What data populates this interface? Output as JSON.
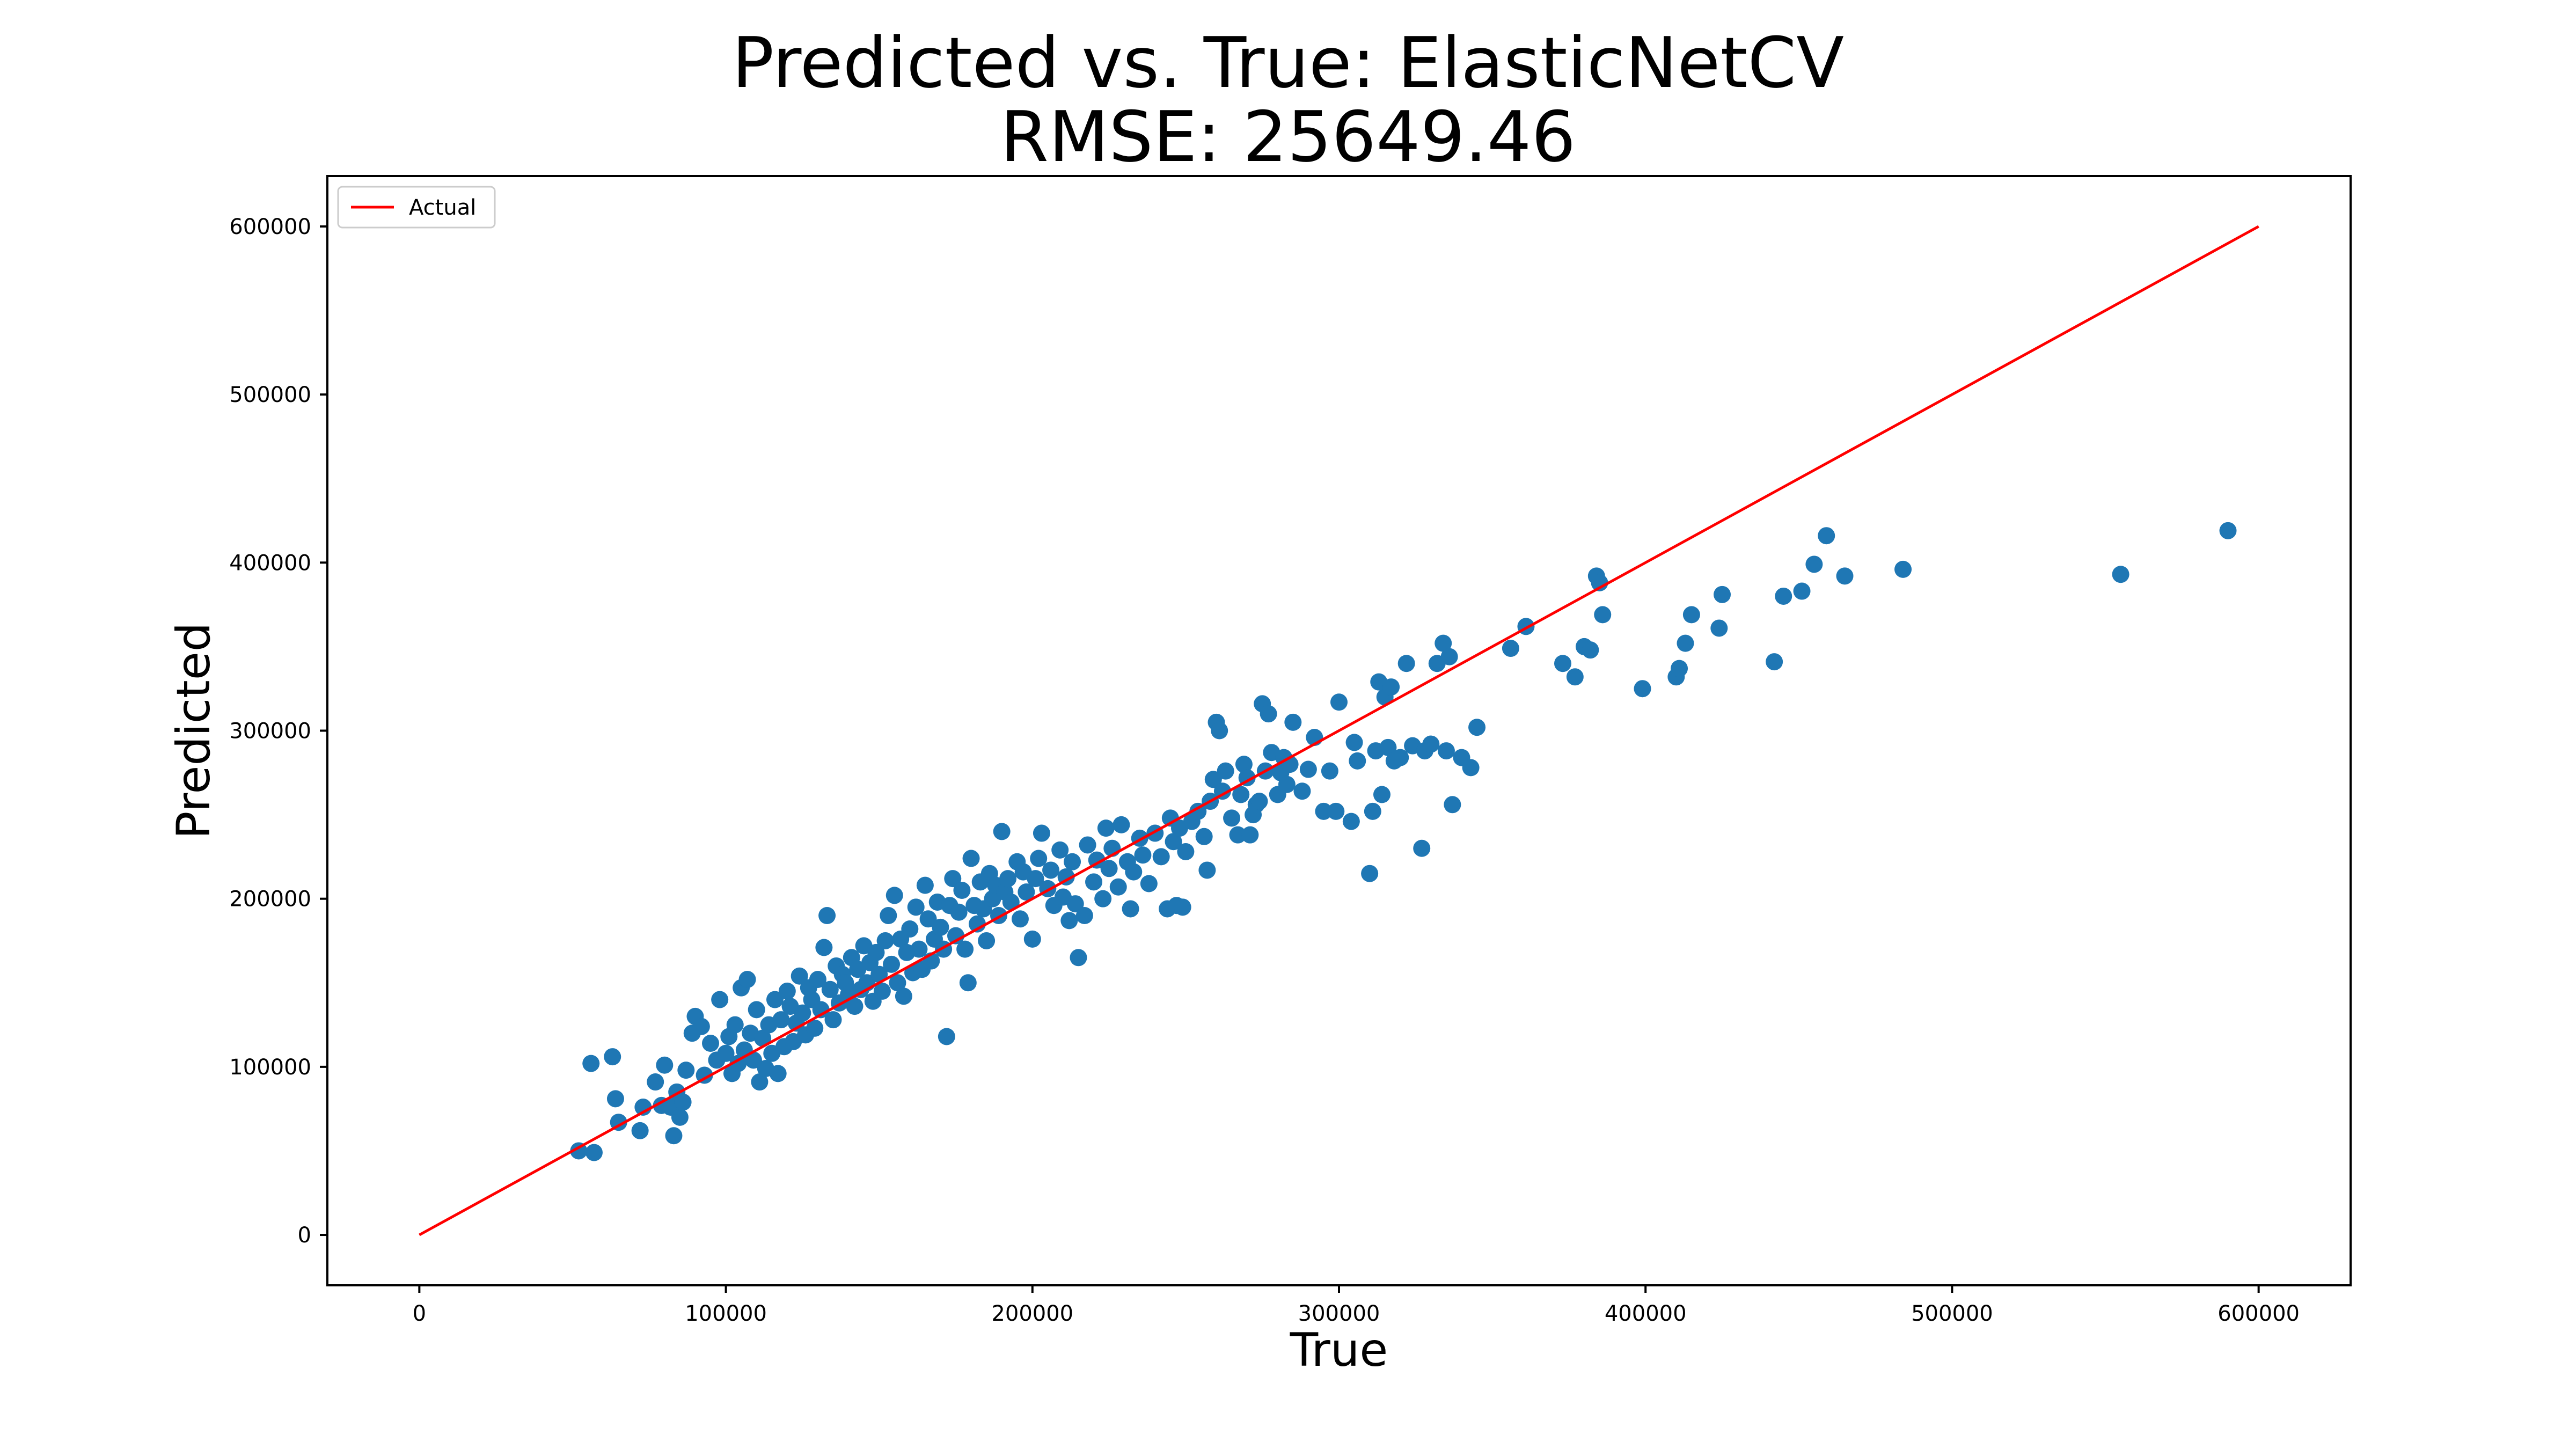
{
  "chart_data": {
    "type": "scatter",
    "title": "Predicted vs. True: ElasticNetCV",
    "subtitle": "RMSE: 25649.46",
    "xlabel": "True",
    "ylabel": "Predicted",
    "xlim": [
      -30000,
      630000
    ],
    "ylim": [
      -30000,
      630000
    ],
    "xticks": [
      0,
      100000,
      200000,
      300000,
      400000,
      500000,
      600000
    ],
    "yticks": [
      0,
      100000,
      200000,
      300000,
      400000,
      500000,
      600000
    ],
    "grid": false,
    "legend": {
      "position": "top-left",
      "entries": [
        {
          "label": "Actual",
          "color": "#e41a1c",
          "kind": "line"
        }
      ]
    },
    "reference_line": {
      "name": "Actual",
      "x": [
        0,
        600000
      ],
      "y": [
        0,
        600000
      ],
      "color": "#ff0000"
    },
    "points_color": "#1f77b4",
    "points": [
      [
        52000,
        50000
      ],
      [
        57000,
        49000
      ],
      [
        56000,
        102000
      ],
      [
        63000,
        106000
      ],
      [
        64000,
        81000
      ],
      [
        65000,
        67000
      ],
      [
        72000,
        62000
      ],
      [
        73000,
        76000
      ],
      [
        77000,
        91000
      ],
      [
        79000,
        77000
      ],
      [
        80000,
        101000
      ],
      [
        82000,
        76000
      ],
      [
        83000,
        59000
      ],
      [
        84000,
        85000
      ],
      [
        85000,
        70000
      ],
      [
        86000,
        79000
      ],
      [
        87000,
        98000
      ],
      [
        89000,
        120000
      ],
      [
        90000,
        130000
      ],
      [
        92000,
        124000
      ],
      [
        93000,
        95000
      ],
      [
        95000,
        114000
      ],
      [
        97000,
        104000
      ],
      [
        98000,
        140000
      ],
      [
        100000,
        108000
      ],
      [
        101000,
        118000
      ],
      [
        102000,
        96000
      ],
      [
        103000,
        125000
      ],
      [
        104000,
        102000
      ],
      [
        105000,
        147000
      ],
      [
        106000,
        110000
      ],
      [
        107000,
        152000
      ],
      [
        108000,
        120000
      ],
      [
        109000,
        104000
      ],
      [
        110000,
        134000
      ],
      [
        111000,
        91000
      ],
      [
        112000,
        117000
      ],
      [
        113000,
        99000
      ],
      [
        114000,
        125000
      ],
      [
        115000,
        108000
      ],
      [
        116000,
        140000
      ],
      [
        117000,
        96000
      ],
      [
        118000,
        128000
      ],
      [
        119000,
        112000
      ],
      [
        120000,
        145000
      ],
      [
        121000,
        136000
      ],
      [
        122000,
        115000
      ],
      [
        123000,
        126000
      ],
      [
        124000,
        154000
      ],
      [
        125000,
        132000
      ],
      [
        126000,
        119000
      ],
      [
        127000,
        147000
      ],
      [
        128000,
        140000
      ],
      [
        129000,
        123000
      ],
      [
        130000,
        152000
      ],
      [
        131000,
        134000
      ],
      [
        132000,
        171000
      ],
      [
        133000,
        190000
      ],
      [
        134000,
        146000
      ],
      [
        135000,
        128000
      ],
      [
        136000,
        160000
      ],
      [
        137000,
        138000
      ],
      [
        138000,
        155000
      ],
      [
        139000,
        150000
      ],
      [
        140000,
        143000
      ],
      [
        141000,
        165000
      ],
      [
        142000,
        136000
      ],
      [
        143000,
        158000
      ],
      [
        144000,
        146000
      ],
      [
        145000,
        172000
      ],
      [
        146000,
        150000
      ],
      [
        147000,
        162000
      ],
      [
        148000,
        139000
      ],
      [
        149000,
        168000
      ],
      [
        150000,
        155000
      ],
      [
        151000,
        145000
      ],
      [
        152000,
        175000
      ],
      [
        153000,
        190000
      ],
      [
        154000,
        161000
      ],
      [
        155000,
        202000
      ],
      [
        156000,
        150000
      ],
      [
        157000,
        176000
      ],
      [
        158000,
        142000
      ],
      [
        159000,
        168000
      ],
      [
        160000,
        182000
      ],
      [
        161000,
        156000
      ],
      [
        162000,
        195000
      ],
      [
        163000,
        170000
      ],
      [
        164000,
        158000
      ],
      [
        165000,
        208000
      ],
      [
        166000,
        188000
      ],
      [
        167000,
        163000
      ],
      [
        168000,
        176000
      ],
      [
        169000,
        198000
      ],
      [
        170000,
        183000
      ],
      [
        171000,
        170000
      ],
      [
        172000,
        118000
      ],
      [
        173000,
        196000
      ],
      [
        174000,
        212000
      ],
      [
        175000,
        178000
      ],
      [
        176000,
        192000
      ],
      [
        177000,
        205000
      ],
      [
        178000,
        170000
      ],
      [
        179000,
        150000
      ],
      [
        180000,
        224000
      ],
      [
        181000,
        196000
      ],
      [
        182000,
        185000
      ],
      [
        183000,
        210000
      ],
      [
        184000,
        194000
      ],
      [
        185000,
        175000
      ],
      [
        186000,
        215000
      ],
      [
        187000,
        200000
      ],
      [
        188000,
        208000
      ],
      [
        189000,
        190000
      ],
      [
        190000,
        240000
      ],
      [
        191000,
        204000
      ],
      [
        192000,
        212000
      ],
      [
        193000,
        198000
      ],
      [
        195000,
        222000
      ],
      [
        196000,
        188000
      ],
      [
        197000,
        216000
      ],
      [
        198000,
        204000
      ],
      [
        200000,
        176000
      ],
      [
        201000,
        212000
      ],
      [
        202000,
        224000
      ],
      [
        203000,
        239000
      ],
      [
        205000,
        206000
      ],
      [
        206000,
        217000
      ],
      [
        207000,
        196000
      ],
      [
        209000,
        229000
      ],
      [
        210000,
        201000
      ],
      [
        211000,
        213000
      ],
      [
        212000,
        187000
      ],
      [
        213000,
        222000
      ],
      [
        214000,
        197000
      ],
      [
        215000,
        165000
      ],
      [
        217000,
        190000
      ],
      [
        218000,
        232000
      ],
      [
        220000,
        210000
      ],
      [
        221000,
        223000
      ],
      [
        223000,
        200000
      ],
      [
        224000,
        242000
      ],
      [
        225000,
        218000
      ],
      [
        226000,
        230000
      ],
      [
        228000,
        207000
      ],
      [
        229000,
        244000
      ],
      [
        231000,
        222000
      ],
      [
        232000,
        194000
      ],
      [
        233000,
        216000
      ],
      [
        235000,
        236000
      ],
      [
        236000,
        226000
      ],
      [
        238000,
        209000
      ],
      [
        240000,
        239000
      ],
      [
        242000,
        225000
      ],
      [
        244000,
        194000
      ],
      [
        245000,
        248000
      ],
      [
        246000,
        234000
      ],
      [
        247000,
        196000
      ],
      [
        248000,
        242000
      ],
      [
        249000,
        195000
      ],
      [
        250000,
        228000
      ],
      [
        252000,
        246000
      ],
      [
        254000,
        252000
      ],
      [
        256000,
        237000
      ],
      [
        257000,
        217000
      ],
      [
        258000,
        258000
      ],
      [
        259000,
        271000
      ],
      [
        260000,
        305000
      ],
      [
        261000,
        300000
      ],
      [
        262000,
        264000
      ],
      [
        263000,
        276000
      ],
      [
        265000,
        248000
      ],
      [
        267000,
        238000
      ],
      [
        268000,
        262000
      ],
      [
        269000,
        280000
      ],
      [
        270000,
        272000
      ],
      [
        271000,
        238000
      ],
      [
        272000,
        250000
      ],
      [
        273000,
        256000
      ],
      [
        274000,
        258000
      ],
      [
        275000,
        316000
      ],
      [
        276000,
        276000
      ],
      [
        277000,
        310000
      ],
      [
        278000,
        287000
      ],
      [
        280000,
        262000
      ],
      [
        281000,
        275000
      ],
      [
        282000,
        284000
      ],
      [
        283000,
        268000
      ],
      [
        284000,
        280000
      ],
      [
        285000,
        305000
      ],
      [
        288000,
        264000
      ],
      [
        290000,
        277000
      ],
      [
        292000,
        296000
      ],
      [
        295000,
        252000
      ],
      [
        297000,
        276000
      ],
      [
        299000,
        252000
      ],
      [
        300000,
        317000
      ],
      [
        304000,
        246000
      ],
      [
        305000,
        293000
      ],
      [
        306000,
        282000
      ],
      [
        310000,
        215000
      ],
      [
        311000,
        252000
      ],
      [
        312000,
        288000
      ],
      [
        313000,
        329000
      ],
      [
        314000,
        262000
      ],
      [
        315000,
        320000
      ],
      [
        316000,
        290000
      ],
      [
        317000,
        326000
      ],
      [
        318000,
        282000
      ],
      [
        320000,
        284000
      ],
      [
        322000,
        340000
      ],
      [
        324000,
        291000
      ],
      [
        327000,
        230000
      ],
      [
        328000,
        288000
      ],
      [
        330000,
        292000
      ],
      [
        332000,
        340000
      ],
      [
        334000,
        352000
      ],
      [
        335000,
        288000
      ],
      [
        336000,
        344000
      ],
      [
        337000,
        256000
      ],
      [
        340000,
        284000
      ],
      [
        343000,
        278000
      ],
      [
        345000,
        302000
      ],
      [
        356000,
        349000
      ],
      [
        361000,
        362000
      ],
      [
        373000,
        340000
      ],
      [
        377000,
        332000
      ],
      [
        380000,
        350000
      ],
      [
        382000,
        348000
      ],
      [
        384000,
        392000
      ],
      [
        385000,
        388000
      ],
      [
        386000,
        369000
      ],
      [
        399000,
        325000
      ],
      [
        410000,
        332000
      ],
      [
        411000,
        337000
      ],
      [
        413000,
        352000
      ],
      [
        415000,
        369000
      ],
      [
        424000,
        361000
      ],
      [
        425000,
        381000
      ],
      [
        442000,
        341000
      ],
      [
        445000,
        380000
      ],
      [
        451000,
        383000
      ],
      [
        455000,
        399000
      ],
      [
        459000,
        416000
      ],
      [
        465000,
        392000
      ],
      [
        484000,
        396000
      ],
      [
        555000,
        393000
      ],
      [
        590000,
        419000
      ]
    ]
  }
}
